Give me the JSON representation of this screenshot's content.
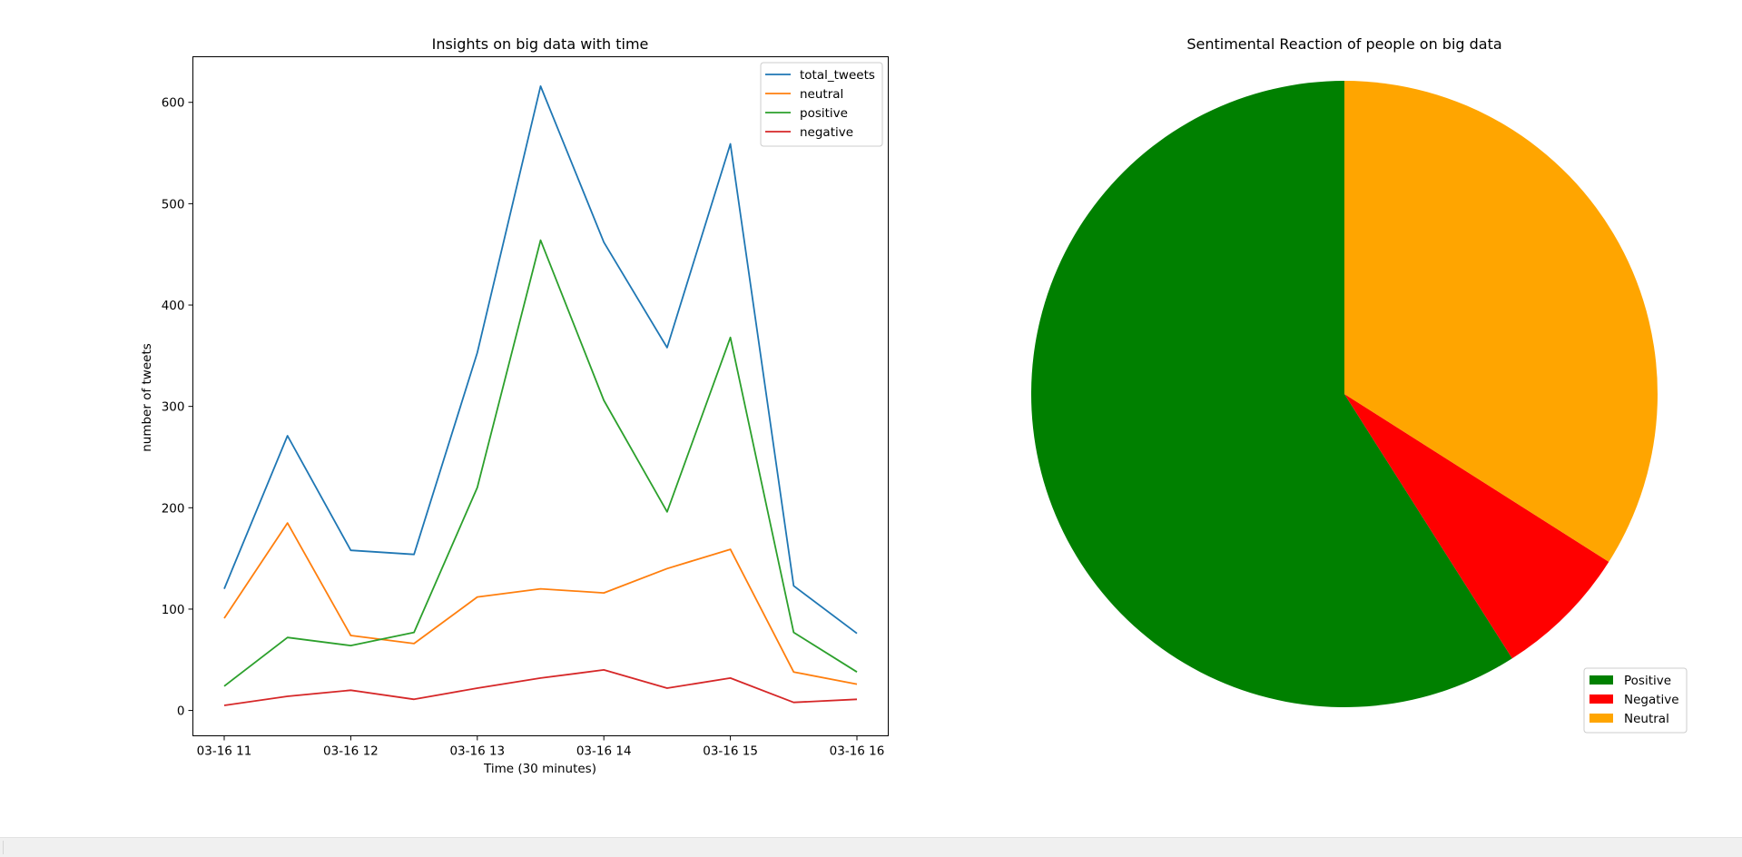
{
  "chart_data": [
    {
      "type": "line",
      "title": "Insights on big data with time",
      "xlabel": "Time (30 minutes)",
      "ylabel": "number of tweets",
      "x": [
        "03-16 11:00",
        "03-16 11:30",
        "03-16 12:00",
        "03-16 12:30",
        "03-16 13:00",
        "03-16 13:30",
        "03-16 14:00",
        "03-16 14:30",
        "03-16 15:00",
        "03-16 15:30",
        "03-16 16:00"
      ],
      "xtick_labels": [
        "03-16 11",
        "03-16 12",
        "03-16 13",
        "03-16 14",
        "03-16 15",
        "03-16 16"
      ],
      "ylim": [
        -25,
        645
      ],
      "yticks": [
        0,
        100,
        200,
        300,
        400,
        500,
        600
      ],
      "grid": false,
      "legend": "top-right",
      "series": [
        {
          "name": "total_tweets",
          "color": "#1f77b4",
          "values": [
            120,
            271,
            158,
            154,
            353,
            616,
            462,
            358,
            559,
            123,
            76
          ]
        },
        {
          "name": "neutral",
          "color": "#ff7f0e",
          "values": [
            91,
            185,
            74,
            66,
            112,
            120,
            116,
            140,
            159,
            38,
            26
          ]
        },
        {
          "name": "positive",
          "color": "#2ca02c",
          "values": [
            24,
            72,
            64,
            77,
            220,
            464,
            306,
            196,
            368,
            77,
            38
          ]
        },
        {
          "name": "negative",
          "color": "#d62728",
          "values": [
            5,
            14,
            20,
            11,
            22,
            32,
            40,
            22,
            32,
            8,
            11
          ]
        }
      ]
    },
    {
      "type": "pie",
      "title": "Sentimental Reaction of people on big data",
      "legend": "bottom-right",
      "slices": [
        {
          "label": "Positive",
          "value": 59,
          "color": "#008000"
        },
        {
          "label": "Negative",
          "value": 7,
          "color": "#ff0000"
        },
        {
          "label": "Neutral",
          "value": 34,
          "color": "#ffa500"
        }
      ]
    }
  ]
}
